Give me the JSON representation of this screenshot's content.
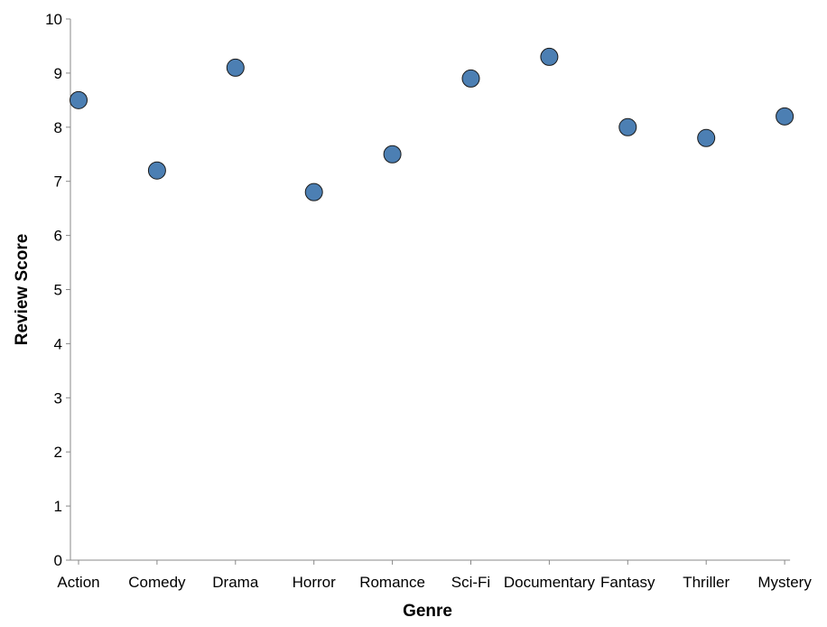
{
  "chart_data": {
    "type": "scatter",
    "categories": [
      "Action",
      "Comedy",
      "Drama",
      "Horror",
      "Romance",
      "Sci-Fi",
      "Documentary",
      "Fantasy",
      "Thriller",
      "Mystery"
    ],
    "values": [
      8.5,
      7.2,
      9.1,
      6.8,
      7.5,
      8.9,
      9.3,
      8.0,
      7.8,
      8.2
    ],
    "xlabel": "Genre",
    "ylabel": "Review Score",
    "ylim": [
      0,
      10
    ],
    "yticks": [
      "0",
      "1",
      "2",
      "3",
      "4",
      "5",
      "6",
      "7",
      "8",
      "9",
      "10"
    ],
    "grid": false,
    "point_color": "#4c7fb3"
  }
}
